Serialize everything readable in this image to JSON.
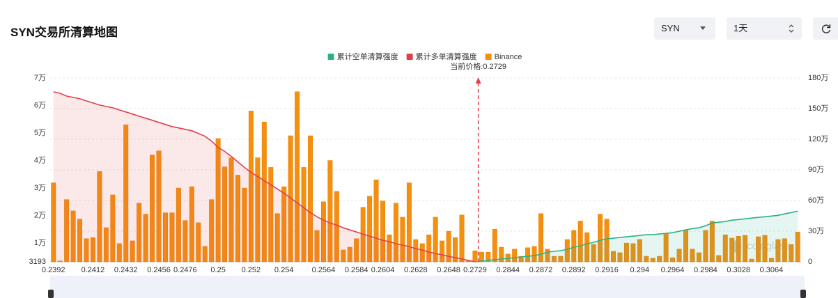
{
  "header": {
    "title": "SYN交易所清算地图"
  },
  "controls": {
    "symbol": "SYN",
    "period": "1天"
  },
  "chart_data": {
    "type": "bar",
    "annotation": "当前价格:0.2729",
    "watermark": "coinglass",
    "categories": [
      "0.2392",
      null,
      null,
      null,
      null,
      null,
      "0.2412",
      null,
      null,
      null,
      null,
      "0.2432",
      null,
      null,
      null,
      null,
      "0.2456",
      null,
      null,
      null,
      "0.2476",
      null,
      null,
      null,
      null,
      "0.25",
      null,
      null,
      null,
      null,
      "0.252",
      null,
      null,
      null,
      null,
      "0.254",
      null,
      null,
      null,
      null,
      null,
      "0.2564",
      null,
      null,
      null,
      null,
      "0.2584",
      null,
      null,
      null,
      "0.2604",
      null,
      null,
      null,
      null,
      "0.2628",
      null,
      null,
      null,
      null,
      "0.2648",
      null,
      null,
      null,
      "0.2729",
      null,
      null,
      null,
      null,
      "0.2844",
      null,
      null,
      null,
      null,
      "0.2872",
      null,
      null,
      null,
      null,
      "0.2892",
      null,
      null,
      null,
      null,
      "0.2916",
      null,
      null,
      null,
      null,
      "0.294",
      null,
      null,
      null,
      null,
      "0.2964",
      null,
      null,
      null,
      null,
      "0.2984",
      null,
      null,
      null,
      null,
      "0.3028",
      null,
      null,
      null,
      null,
      "0.3064",
      null,
      null,
      null,
      null
    ],
    "series": [
      {
        "name": "累计空单清算强度",
        "type": "area",
        "axis": "y2",
        "color": "#2bb08a",
        "values": [
          null,
          null,
          null,
          null,
          null,
          null,
          null,
          null,
          null,
          null,
          null,
          null,
          null,
          null,
          null,
          null,
          null,
          null,
          null,
          null,
          null,
          null,
          null,
          null,
          null,
          null,
          null,
          null,
          null,
          null,
          null,
          null,
          null,
          null,
          null,
          null,
          null,
          null,
          null,
          null,
          null,
          null,
          null,
          null,
          null,
          null,
          null,
          null,
          null,
          null,
          null,
          null,
          null,
          null,
          null,
          null,
          null,
          null,
          null,
          null,
          null,
          null,
          null,
          null,
          0,
          7000,
          14000,
          20000,
          27000,
          34000,
          41000,
          48000,
          54000,
          61000,
          75000,
          95000,
          102000,
          109000,
          122000,
          143000,
          156000,
          177000,
          190000,
          211000,
          224000,
          231000,
          238000,
          245000,
          251000,
          258000,
          265000,
          265000,
          272000,
          278000,
          285000,
          299000,
          312000,
          326000,
          333000,
          353000,
          380000,
          387000,
          394000,
          408000,
          414000,
          421000,
          428000,
          435000,
          441000,
          448000,
          455000,
          469000,
          482000,
          496000
        ]
      },
      {
        "name": "累计多单清算强度",
        "type": "area",
        "axis": "y2",
        "color": "#e0404c",
        "values": [
          1664000,
          1650000,
          1623000,
          1610000,
          1596000,
          1576000,
          1555000,
          1535000,
          1521000,
          1508000,
          1487000,
          1467000,
          1447000,
          1426000,
          1406000,
          1386000,
          1365000,
          1345000,
          1324000,
          1311000,
          1297000,
          1284000,
          1257000,
          1229000,
          1182000,
          1121000,
          1080000,
          1032000,
          978000,
          924000,
          876000,
          835000,
          795000,
          754000,
          713000,
          672000,
          625000,
          577000,
          530000,
          482000,
          441000,
          408000,
          380000,
          360000,
          333000,
          312000,
          292000,
          272000,
          251000,
          231000,
          211000,
          197000,
          177000,
          163000,
          149000,
          129000,
          115000,
          95000,
          82000,
          68000,
          54000,
          41000,
          27000,
          14000,
          0,
          null,
          null,
          null,
          null,
          null,
          null,
          null,
          null,
          null,
          null,
          null,
          null,
          null,
          null,
          null,
          null,
          null,
          null,
          null,
          null,
          null,
          null,
          null,
          null,
          null,
          null,
          null,
          null,
          null,
          null,
          null,
          null,
          null,
          null,
          null,
          null,
          null,
          null,
          null,
          null,
          null,
          null,
          null,
          null,
          null,
          null,
          null,
          null,
          null
        ]
      },
      {
        "name": "Binance",
        "type": "bar",
        "axis": "y",
        "color": "#f5900f",
        "values": [
          31900,
          3500,
          25800,
          21700,
          18700,
          11600,
          12000,
          36000,
          15600,
          27500,
          9800,
          53000,
          10800,
          24500,
          20500,
          42000,
          43500,
          21000,
          21000,
          30000,
          18200,
          30500,
          17400,
          8800,
          25800,
          48000,
          37700,
          41000,
          34700,
          30000,
          58000,
          41000,
          54000,
          37500,
          20700,
          30500,
          49000,
          65000,
          37500,
          49000,
          14600,
          25000,
          40000,
          28800,
          7500,
          8500,
          11600,
          23000,
          27000,
          33000,
          25300,
          13000,
          24500,
          19400,
          31900,
          11300,
          9800,
          13000,
          19400,
          10800,
          14300,
          12000,
          20200,
          3500,
          7200,
          6700,
          6700,
          15000,
          8500,
          6000,
          7800,
          5200,
          8300,
          8800,
          20700,
          7800,
          5200,
          5200,
          11300,
          14600,
          18000,
          13800,
          9500,
          20500,
          18700,
          7000,
          6500,
          10000,
          9800,
          11300,
          5200,
          4500,
          5200,
          13600,
          4700,
          7800,
          14600,
          7800,
          6500,
          14600,
          18000,
          5500,
          13000,
          11800,
          12500,
          12800,
          4200,
          12300,
          12800,
          4500,
          11300,
          11600,
          9500,
          14000
        ]
      }
    ],
    "ylim": [
      3193,
      70000
    ],
    "yticks": [
      3193,
      {
        "value": 10000,
        "label": "1万"
      },
      {
        "value": 20000,
        "label": "2万"
      },
      {
        "value": 30000,
        "label": "3万"
      },
      {
        "value": 40000,
        "label": "4万"
      },
      {
        "value": 50000,
        "label": "5万"
      },
      {
        "value": 60000,
        "label": "6万"
      },
      {
        "value": 70000,
        "label": "7万"
      }
    ],
    "y2lim": [
      0,
      1800000
    ],
    "y2ticks": [
      0,
      {
        "value": 300000,
        "label": "30万"
      },
      {
        "value": 600000,
        "label": "60万"
      },
      {
        "value": 900000,
        "label": "90万"
      },
      {
        "value": 1200000,
        "label": "120万"
      },
      {
        "value": 1500000,
        "label": "150万"
      },
      {
        "value": 1800000,
        "label": "180万"
      }
    ],
    "grid": true,
    "legend": "top"
  }
}
